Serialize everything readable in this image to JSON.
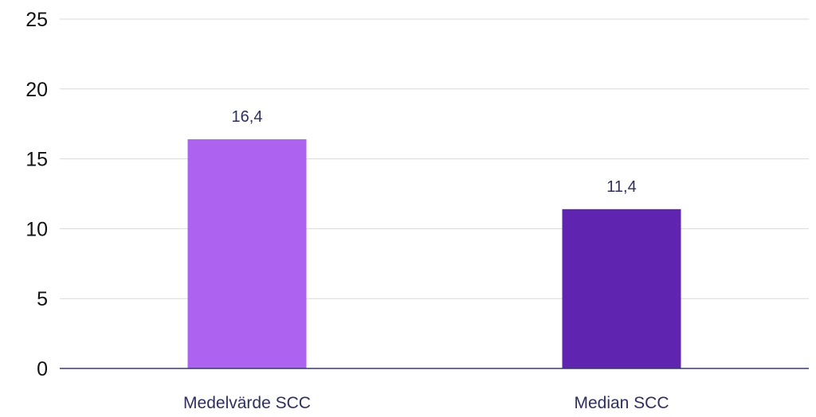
{
  "chart_data": {
    "type": "bar",
    "title": "",
    "xlabel": "",
    "ylabel": "",
    "categories": [
      "Medelvärde SCC",
      "Median SCC"
    ],
    "values": [
      16.4,
      11.4
    ],
    "data_labels": [
      "16,4",
      "11,4"
    ],
    "colors": [
      "#ae62f0",
      "#5f25b0"
    ],
    "ylim": [
      0,
      25
    ],
    "yticks": [
      0,
      5,
      10,
      15,
      20,
      25
    ],
    "ytick_labels": [
      "0",
      "5",
      "10",
      "15",
      "20",
      "25"
    ],
    "grid": true,
    "legend": "none"
  }
}
